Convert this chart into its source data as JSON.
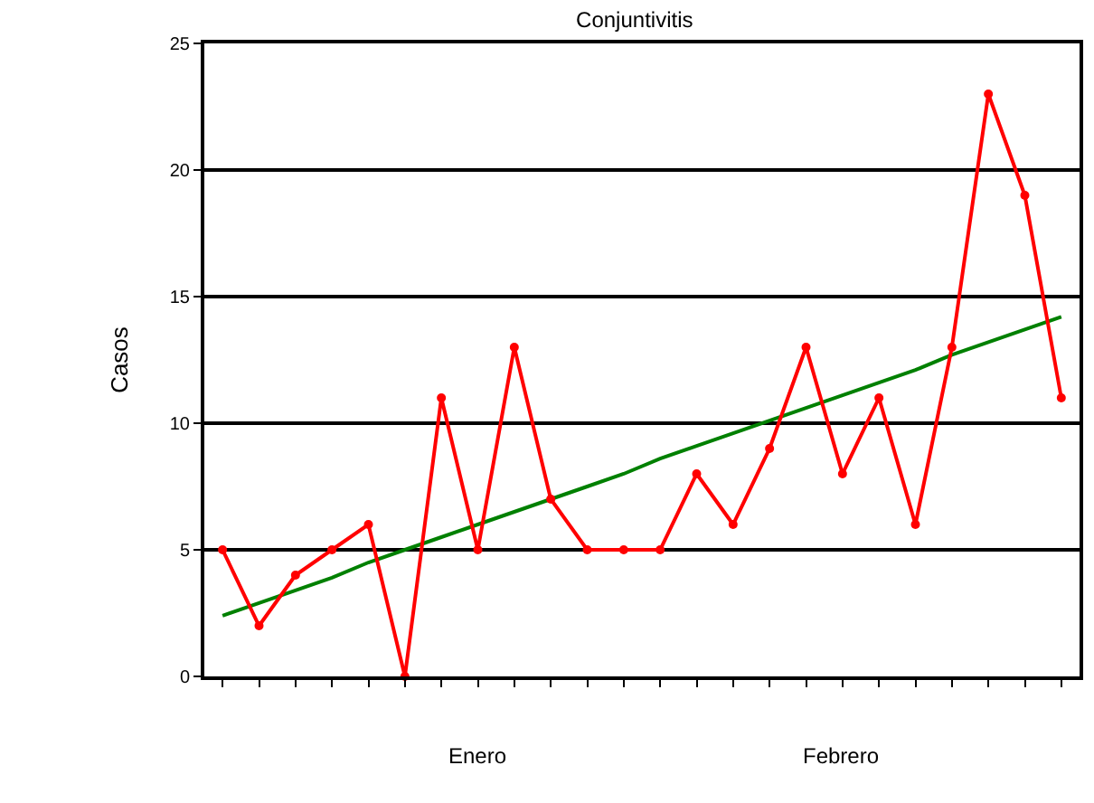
{
  "chart_data": {
    "type": "line",
    "title": "Conjuntivitis",
    "ylabel": "Casos",
    "categories": [
      null,
      null,
      null,
      null,
      null,
      null,
      null,
      null,
      null,
      null,
      null,
      null,
      null,
      null,
      null,
      null,
      null,
      null,
      null,
      null,
      null,
      null,
      null,
      null
    ],
    "series": [
      {
        "color": "#ff0000",
        "marker": "circle",
        "values": [
          5,
          2,
          4,
          5,
          6,
          0,
          11,
          5,
          13,
          7,
          5,
          5,
          5,
          8,
          6,
          9,
          13,
          8,
          11,
          6,
          13,
          23,
          19,
          11
        ]
      },
      {
        "color": "#008000",
        "marker": "none",
        "values": [
          2.4,
          2.9,
          3.4,
          3.9,
          4.5,
          5.0,
          5.5,
          6.0,
          6.5,
          7.0,
          7.5,
          8.0,
          8.6,
          9.1,
          9.6,
          10.1,
          10.6,
          11.1,
          11.6,
          12.1,
          12.7,
          13.2,
          13.7,
          14.2
        ]
      }
    ],
    "annotations": [
      "Enero",
      "Febrero"
    ],
    "ylim": [
      0,
      25
    ],
    "yticks": [
      0,
      5,
      10,
      15,
      20,
      25
    ],
    "grid": "y",
    "legend": false
  }
}
